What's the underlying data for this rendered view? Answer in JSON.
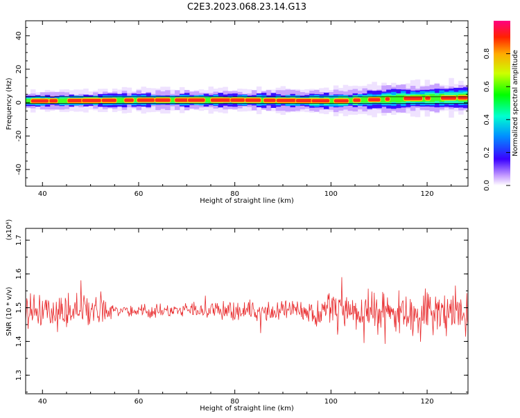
{
  "title": "C2E3.2023.068.23.14.G13",
  "colors": {
    "snr_line": "#e8292b",
    "background": "#ffffff",
    "axis": "#000000"
  },
  "chart_data": [
    {
      "type": "heatmap",
      "xlabel": "Height of straight line (km)",
      "ylabel": "Frequency (Hz)",
      "xlim": [
        36.5,
        128.5
      ],
      "ylim": [
        -50,
        49
      ],
      "x_ticks": [
        40,
        60,
        80,
        100,
        120
      ],
      "y_ticks": [
        -40,
        -20,
        0,
        20,
        40
      ],
      "colorbar": {
        "label": "Normalized spectral amplitude",
        "range": [
          0,
          1
        ],
        "ticks": [
          0.0,
          0.2,
          0.4,
          0.6,
          0.8
        ]
      },
      "band": {
        "center_hz": [
          1,
          1.5,
          1.5,
          1,
          2.5,
          3
        ],
        "center_at_km": [
          37,
          60,
          80,
          100,
          115,
          128
        ],
        "half_width_hz": [
          3,
          3.5,
          3.5,
          4,
          5,
          5
        ],
        "peak_amplitude": 1.0
      }
    },
    {
      "type": "line",
      "xlabel": "Height of straight line (km)",
      "ylabel": "SNR (10 * v/v)",
      "y_multiplier": "(x10⁴)",
      "xlim": [
        36.5,
        128.5
      ],
      "ylim": [
        1.245,
        1.735
      ],
      "x_ticks": [
        40,
        60,
        80,
        100,
        120
      ],
      "y_ticks": [
        1.3,
        1.4,
        1.5,
        1.6,
        1.7
      ],
      "series": [
        {
          "mean": [
            [
              36.5,
              1.49
            ],
            [
              55,
              1.49
            ],
            [
              100,
              1.49
            ],
            [
              128.5,
              1.48
            ]
          ],
          "amplitude": [
            [
              36.5,
              0.07
            ],
            [
              52,
              0.07
            ],
            [
              56,
              0.025
            ],
            [
              65,
              0.025
            ],
            [
              75,
              0.04
            ],
            [
              95,
              0.05
            ],
            [
              100,
              0.08
            ],
            [
              128.5,
              0.1
            ]
          ],
          "points_per_km": 8
        }
      ]
    }
  ]
}
